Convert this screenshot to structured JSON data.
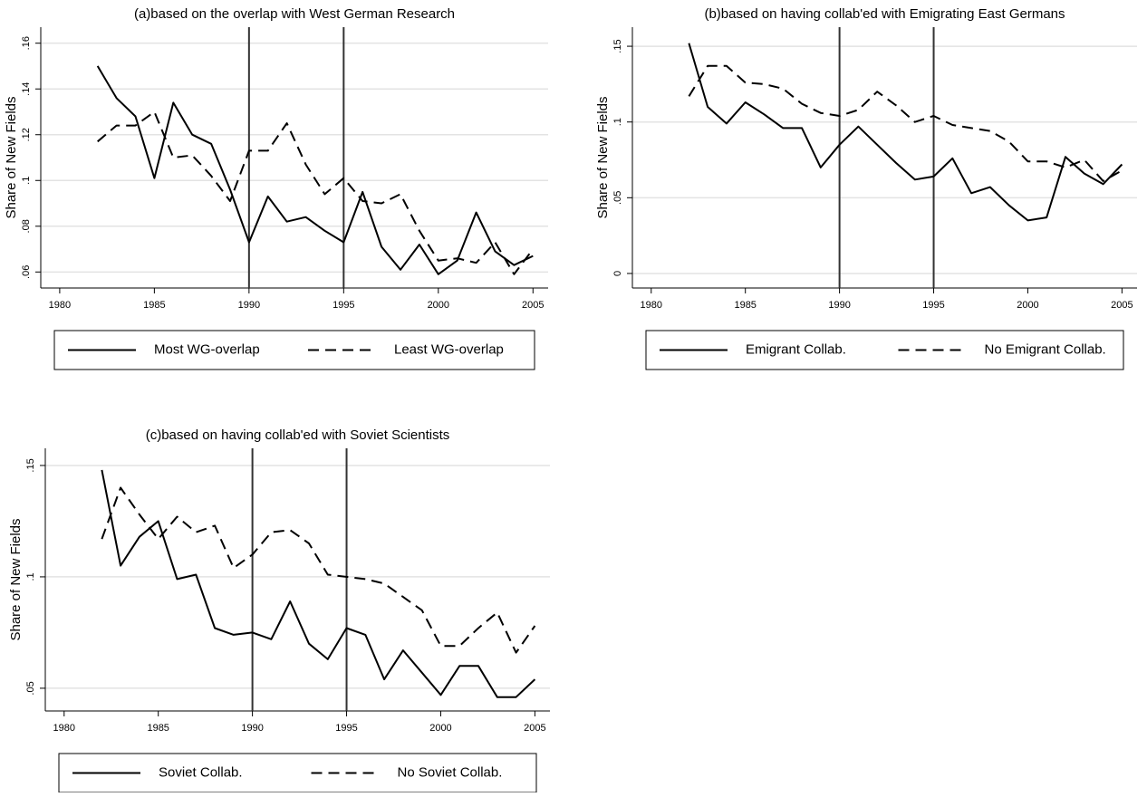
{
  "chart_data": [
    {
      "type": "line",
      "title": "(a)based on the overlap with West German Research",
      "ylabel": "Share of New Fields",
      "x": [
        1982,
        1983,
        1984,
        1985,
        1986,
        1987,
        1988,
        1989,
        1990,
        1991,
        1992,
        1993,
        1994,
        1995,
        1996,
        1997,
        1998,
        1999,
        2000,
        2001,
        2002,
        2003,
        2004,
        2005
      ],
      "xlim": [
        1979,
        2005.8
      ],
      "xticks": [
        1980,
        1985,
        1990,
        1995,
        2000,
        2005
      ],
      "ylim": [
        0.053,
        0.167
      ],
      "yticks": [
        {
          "value": 0.06,
          "label": ".06"
        },
        {
          "value": 0.08,
          "label": ".08"
        },
        {
          "value": 0.1,
          "label": ".1"
        },
        {
          "value": 0.12,
          "label": ".12"
        },
        {
          "value": 0.14,
          "label": ".14"
        },
        {
          "value": 0.16,
          "label": ".16"
        }
      ],
      "grid": true,
      "vlines": [
        1990,
        1995
      ],
      "series": [
        {
          "name": "Most WG-overlap",
          "color": "#000000",
          "style": "solid",
          "values": [
            0.15,
            0.136,
            0.128,
            0.101,
            0.134,
            0.12,
            0.116,
            0.096,
            0.073,
            0.093,
            0.082,
            0.084,
            0.078,
            0.073,
            0.095,
            0.071,
            0.061,
            0.072,
            0.059,
            0.065,
            0.086,
            0.069,
            0.063,
            0.067
          ]
        },
        {
          "name": "Least WG-overlap",
          "color": "#000000",
          "style": "dashed",
          "values": [
            0.117,
            0.124,
            0.124,
            0.13,
            0.11,
            0.111,
            0.102,
            0.091,
            0.113,
            0.113,
            0.125,
            0.107,
            0.094,
            0.101,
            0.091,
            0.09,
            0.094,
            0.078,
            0.065,
            0.066,
            0.064,
            0.073,
            0.059,
            0.07
          ]
        }
      ]
    },
    {
      "type": "line",
      "title": "(b)based on having collab'ed with Emigrating East Germans",
      "ylabel": "Share of New Fields",
      "x": [
        1982,
        1983,
        1984,
        1985,
        1986,
        1987,
        1988,
        1989,
        1990,
        1991,
        1992,
        1993,
        1994,
        1995,
        1996,
        1997,
        1998,
        1999,
        2000,
        2001,
        2002,
        2003,
        2004,
        2005
      ],
      "xlim": [
        1979,
        2005.8
      ],
      "xticks": [
        1980,
        1985,
        1990,
        1995,
        2000,
        2005
      ],
      "ylim": [
        -0.0096,
        0.1626
      ],
      "yticks": [
        0,
        {
          "value": 0.05,
          "label": ".05"
        },
        {
          "value": 0.1,
          "label": ".1"
        },
        {
          "value": 0.15,
          "label": ".15"
        }
      ],
      "grid": true,
      "vlines": [
        1990,
        1995
      ],
      "series": [
        {
          "name": "Emigrant Collab.",
          "color": "#000000",
          "style": "solid",
          "values": [
            0.152,
            0.11,
            0.099,
            0.113,
            0.105,
            0.096,
            0.096,
            0.07,
            0.085,
            0.097,
            0.085,
            0.073,
            0.062,
            0.064,
            0.076,
            0.053,
            0.057,
            0.045,
            0.035,
            0.037,
            0.077,
            0.066,
            0.059,
            0.072
          ]
        },
        {
          "name": "No Emigrant Collab.",
          "color": "#000000",
          "style": "dashed",
          "values": [
            0.117,
            0.137,
            0.137,
            0.126,
            0.125,
            0.122,
            0.112,
            0.106,
            0.104,
            0.108,
            0.12,
            0.111,
            0.1,
            0.104,
            0.098,
            0.096,
            0.094,
            0.087,
            0.074,
            0.074,
            0.07,
            0.075,
            0.061,
            0.068
          ]
        }
      ]
    },
    {
      "type": "line",
      "title": "(c)based on having collab'ed with Soviet Scientists",
      "ylabel": "Share of New Fields",
      "x": [
        1982,
        1983,
        1984,
        1985,
        1986,
        1987,
        1988,
        1989,
        1990,
        1991,
        1992,
        1993,
        1994,
        1995,
        1996,
        1997,
        1998,
        1999,
        2000,
        2001,
        2002,
        2003,
        2004,
        2005
      ],
      "xlim": [
        1979,
        2005.8
      ],
      "xticks": [
        1980,
        1985,
        1990,
        1995,
        2000,
        2005
      ],
      "ylim": [
        0.0398,
        0.1577
      ],
      "yticks": [
        {
          "value": 0.05,
          "label": ".05"
        },
        {
          "value": 0.1,
          "label": ".1"
        },
        {
          "value": 0.15,
          "label": ".15"
        }
      ],
      "grid": true,
      "vlines": [
        1990,
        1995
      ],
      "series": [
        {
          "name": "Soviet Collab.",
          "color": "#000000",
          "style": "solid",
          "values": [
            0.148,
            0.105,
            0.118,
            0.125,
            0.099,
            0.101,
            0.077,
            0.074,
            0.075,
            0.072,
            0.089,
            0.07,
            0.063,
            0.077,
            0.074,
            0.054,
            0.067,
            0.057,
            0.047,
            0.06,
            0.06,
            0.046,
            0.046,
            0.054
          ]
        },
        {
          "name": "No Soviet Collab.",
          "color": "#000000",
          "style": "dashed",
          "values": [
            0.117,
            0.14,
            0.128,
            0.117,
            0.127,
            0.12,
            0.123,
            0.104,
            0.11,
            0.12,
            0.121,
            0.115,
            0.101,
            0.1,
            0.099,
            0.097,
            0.091,
            0.085,
            0.069,
            0.069,
            0.077,
            0.084,
            0.066,
            0.078
          ]
        }
      ]
    }
  ]
}
